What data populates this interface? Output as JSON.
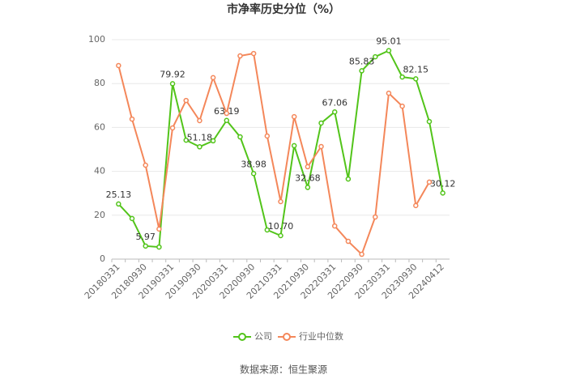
{
  "chart_data": {
    "type": "line",
    "title": "市净率历史分位（%）",
    "source": "数据来源：恒生聚源",
    "categories": [
      "20180331",
      null,
      "20180930",
      null,
      "20190331",
      null,
      "20190930",
      null,
      "20200331",
      null,
      "20200930",
      null,
      "20210331",
      null,
      "20210930",
      null,
      "20220331",
      null,
      "20220930",
      null,
      "20230331",
      null,
      "20230930",
      null,
      "20240412"
    ],
    "series": [
      {
        "name": "公司",
        "color": "#52c41a",
        "values": [
          25.13,
          18.5,
          5.97,
          5.5,
          79.92,
          54.2,
          51.18,
          53.9,
          63.19,
          55.7,
          38.98,
          13.3,
          10.7,
          51.7,
          32.68,
          62,
          67.06,
          36.5,
          85.83,
          92.2,
          95.01,
          83,
          82.15,
          62.7,
          30.12
        ],
        "value_labels": [
          "25.13",
          null,
          "5.97",
          null,
          "79.92",
          null,
          "51.18",
          null,
          "63.19",
          null,
          "38.98",
          null,
          "10.70",
          null,
          "32.68",
          null,
          "67.06",
          null,
          "85.83",
          null,
          "95.01",
          null,
          "82.15",
          null,
          "30.12"
        ]
      },
      {
        "name": "行业中位数",
        "color": "#f4875a",
        "values": [
          88.2,
          63.8,
          42.8,
          13.7,
          59.8,
          72.3,
          63.1,
          82.7,
          66.4,
          92.6,
          93.7,
          56.1,
          26.2,
          64.9,
          42.1,
          51.3,
          15.1,
          8.1,
          2.2,
          19.2,
          75.6,
          69.7,
          24.4,
          35.1,
          null
        ]
      }
    ],
    "ylim": [
      0,
      100
    ],
    "yticks": [
      0,
      20,
      40,
      60,
      80,
      100
    ],
    "grid": true
  }
}
